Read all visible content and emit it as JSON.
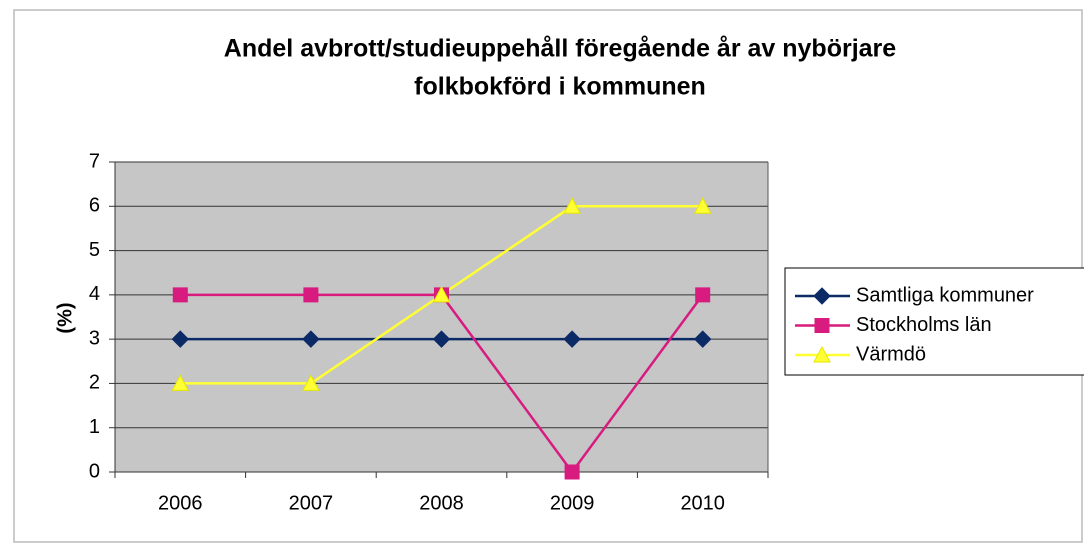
{
  "chart_data": {
    "type": "line",
    "title": [
      "Andel avbrott/studieuppehåll föregående år av nybörjare",
      "folkbokförd i kommunen"
    ],
    "ylabel": "(%)",
    "categories": [
      "2006",
      "2007",
      "2008",
      "2009",
      "2010"
    ],
    "series": [
      {
        "name": "Samtliga kommuner",
        "color": "#0b2a66",
        "marker": "diamond",
        "values": [
          3,
          3,
          3,
          3,
          3
        ]
      },
      {
        "name": "Stockholms län",
        "color": "#d81b7f",
        "marker": "square",
        "values": [
          4,
          4,
          4,
          0,
          4
        ]
      },
      {
        "name": "Värmdö",
        "color": "#ffff33",
        "marker": "triangle",
        "values": [
          2,
          2,
          4,
          6,
          6
        ]
      }
    ],
    "ylim": [
      0,
      7
    ],
    "yticks": [
      0,
      1,
      2,
      3,
      4,
      5,
      6,
      7
    ],
    "grid": true,
    "legend": "right"
  }
}
